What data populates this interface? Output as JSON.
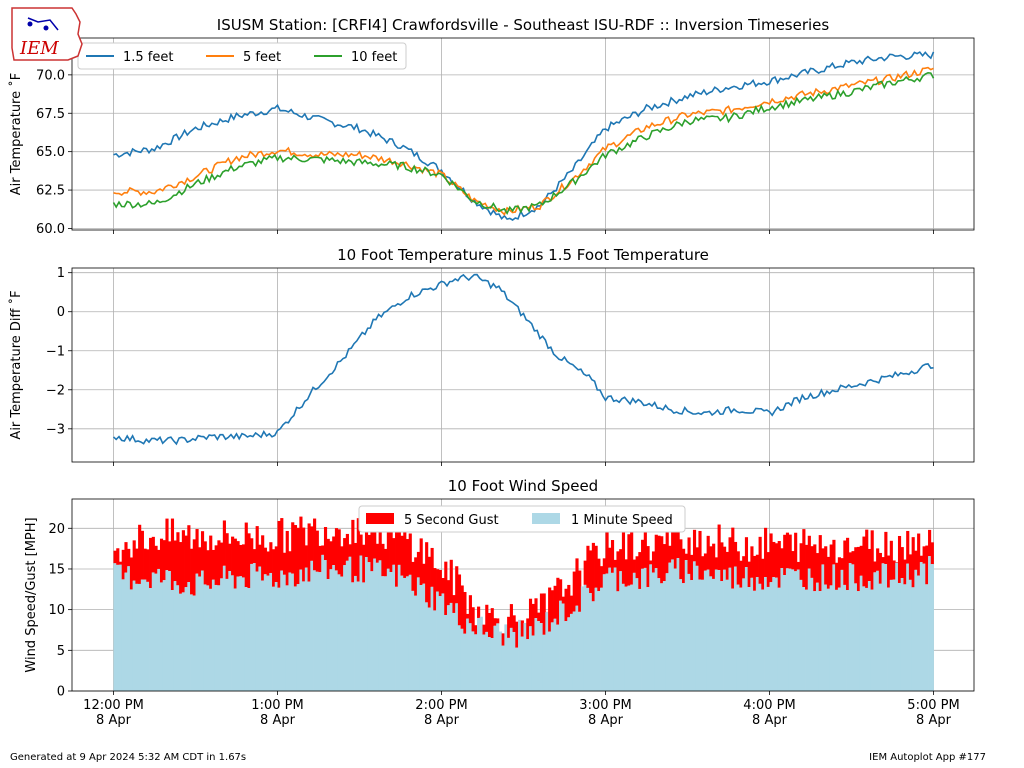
{
  "logo_text": "IEM",
  "footer": {
    "generated": "Generated at 9 Apr 2024 5:32 AM CDT in 1.67s",
    "app": "IEM Autoplot App #177"
  },
  "colors": {
    "blue": "#1f77b4",
    "orange": "#ff7f0e",
    "green": "#2ca02c",
    "gust": "#ff0000",
    "speed": "#add8e6",
    "grid": "#b0b0b0"
  },
  "chart_data": [
    {
      "type": "line",
      "title": "ISUSM Station: [CRFI4] Crawfordsville - Southeast ISU-RDF :: Inversion Timeseries",
      "ylabel": "Air Temperature ˚F",
      "ylim": [
        59.9,
        72.4
      ],
      "xlim": [
        -0.0,
        5.25
      ],
      "yticks": [
        60.0,
        62.5,
        65.0,
        67.5,
        70.0
      ],
      "ytick_labels": [
        "60.0",
        "62.5",
        "65.0",
        "67.5",
        "70.0"
      ],
      "grid": true,
      "legend": {
        "placement": "top-left",
        "columns": 3
      },
      "x_unit": "hours since 12:00 PM 8 Apr",
      "series": [
        {
          "name": "1.5 feet",
          "color": "#1f77b4",
          "x": [
            0,
            0.25,
            0.5,
            0.75,
            1.0,
            1.25,
            1.5,
            1.75,
            2.0,
            2.2,
            2.4,
            2.6,
            2.8,
            3.0,
            3.25,
            3.5,
            3.75,
            4.0,
            4.25,
            4.5,
            4.75,
            5.0
          ],
          "y": [
            64.8,
            65.2,
            66.5,
            67.3,
            67.8,
            67.1,
            66.5,
            65.4,
            63.8,
            61.8,
            60.5,
            61.5,
            63.8,
            66.5,
            67.8,
            68.6,
            69.2,
            69.6,
            70.2,
            70.8,
            71.2,
            71.3
          ]
        },
        {
          "name": "5 feet",
          "color": "#ff7f0e",
          "x": [
            0,
            0.25,
            0.5,
            0.75,
            1.0,
            1.25,
            1.5,
            1.75,
            2.0,
            2.2,
            2.4,
            2.6,
            2.8,
            3.0,
            3.25,
            3.5,
            3.75,
            4.0,
            4.25,
            4.5,
            4.75,
            5.0
          ],
          "y": [
            62.4,
            62.4,
            63.4,
            64.6,
            65.1,
            64.8,
            64.8,
            64.3,
            63.5,
            61.8,
            61.1,
            61.5,
            63.2,
            65.2,
            66.6,
            67.4,
            67.7,
            68.3,
            68.8,
            69.3,
            69.8,
            70.4
          ]
        },
        {
          "name": "10 feet",
          "color": "#2ca02c",
          "x": [
            0,
            0.25,
            0.5,
            0.75,
            1.0,
            1.25,
            1.5,
            1.75,
            2.0,
            2.2,
            2.4,
            2.6,
            2.8,
            3.0,
            3.25,
            3.5,
            3.75,
            4.0,
            4.25,
            4.5,
            4.75,
            5.0
          ],
          "y": [
            61.6,
            61.6,
            62.9,
            64.0,
            64.6,
            64.5,
            64.3,
            64.1,
            63.5,
            61.8,
            61.1,
            61.5,
            63.0,
            64.8,
            66.0,
            67.0,
            67.2,
            67.9,
            68.4,
            68.9,
            69.5,
            70.0
          ]
        }
      ]
    },
    {
      "type": "line",
      "title": "10 Foot Temperature minus 1.5 Foot Temperature",
      "ylabel": "Air Temperature Diff ˚F",
      "ylim": [
        -3.85,
        1.12
      ],
      "xlim": [
        -0.0,
        5.25
      ],
      "yticks": [
        -3,
        -2,
        -1,
        0,
        1
      ],
      "ytick_labels": [
        "−3",
        "−2",
        "−1",
        "0",
        "1"
      ],
      "grid": true,
      "series": [
        {
          "color": "#1f77b4",
          "x": [
            0,
            0.2,
            0.4,
            0.6,
            0.8,
            1.0,
            1.1,
            1.2,
            1.4,
            1.6,
            1.8,
            2.0,
            2.1,
            2.2,
            2.35,
            2.5,
            2.7,
            2.9,
            3.0,
            3.2,
            3.4,
            3.6,
            3.8,
            4.0,
            4.2,
            4.4,
            4.6,
            4.8,
            5.0
          ],
          "y": [
            -3.2,
            -3.3,
            -3.3,
            -3.2,
            -3.2,
            -3.1,
            -2.6,
            -2.1,
            -1.2,
            -0.2,
            0.4,
            0.7,
            0.85,
            0.9,
            0.6,
            -0.1,
            -1.1,
            -1.7,
            -2.2,
            -2.3,
            -2.5,
            -2.6,
            -2.5,
            -2.6,
            -2.2,
            -2.0,
            -1.8,
            -1.6,
            -1.35
          ]
        }
      ]
    },
    {
      "type": "bar",
      "title": "10 Foot Wind Speed",
      "ylabel": "Wind Speed/Gust [MPH]",
      "ylim": [
        0,
        23.6
      ],
      "xlim": [
        -0.0,
        5.25
      ],
      "yticks": [
        0,
        5,
        10,
        15,
        20
      ],
      "ytick_labels": [
        "0",
        "5",
        "10",
        "15",
        "20"
      ],
      "grid": true,
      "legend": {
        "placement": "top-center",
        "columns": 2
      },
      "x_ticks": [
        {
          "x": 0,
          "line1": "12:00 PM",
          "line2": "8 Apr"
        },
        {
          "x": 1,
          "line1": "1:00 PM",
          "line2": "8 Apr"
        },
        {
          "x": 2,
          "line1": "2:00 PM",
          "line2": "8 Apr"
        },
        {
          "x": 3,
          "line1": "3:00 PM",
          "line2": "8 Apr"
        },
        {
          "x": 4,
          "line1": "4:00 PM",
          "line2": "8 Apr"
        },
        {
          "x": 5,
          "line1": "5:00 PM",
          "line2": "8 Apr"
        }
      ],
      "series": [
        {
          "name": "5 Second Gust",
          "color": "#ff0000",
          "x": [
            0,
            0.25,
            0.5,
            0.75,
            1.0,
            1.25,
            1.5,
            1.75,
            1.9,
            2.0,
            2.1,
            2.2,
            2.3,
            2.4,
            2.5,
            2.6,
            2.75,
            2.9,
            3.0,
            3.25,
            3.5,
            3.75,
            4.0,
            4.25,
            4.5,
            4.75,
            5.0
          ],
          "y": [
            18,
            19,
            19,
            19,
            19,
            20,
            20,
            19,
            17,
            15,
            13,
            10,
            9,
            9,
            9,
            10,
            13,
            16,
            18,
            18,
            19,
            18,
            18,
            18,
            18,
            18,
            19
          ]
        },
        {
          "name": "1 Minute Speed",
          "color": "#add8e6",
          "x": [
            0,
            0.25,
            0.5,
            0.75,
            1.0,
            1.25,
            1.5,
            1.75,
            1.9,
            2.0,
            2.1,
            2.2,
            2.3,
            2.4,
            2.5,
            2.6,
            2.75,
            2.9,
            3.0,
            3.25,
            3.5,
            3.75,
            4.0,
            4.25,
            4.5,
            4.75,
            5.0
          ],
          "y": [
            14,
            14,
            13,
            14,
            14,
            15,
            15,
            14,
            12,
            11,
            9,
            8,
            7,
            7,
            7,
            8,
            10,
            12,
            14,
            14,
            15,
            14,
            14,
            14,
            14,
            14,
            15
          ]
        }
      ]
    }
  ]
}
